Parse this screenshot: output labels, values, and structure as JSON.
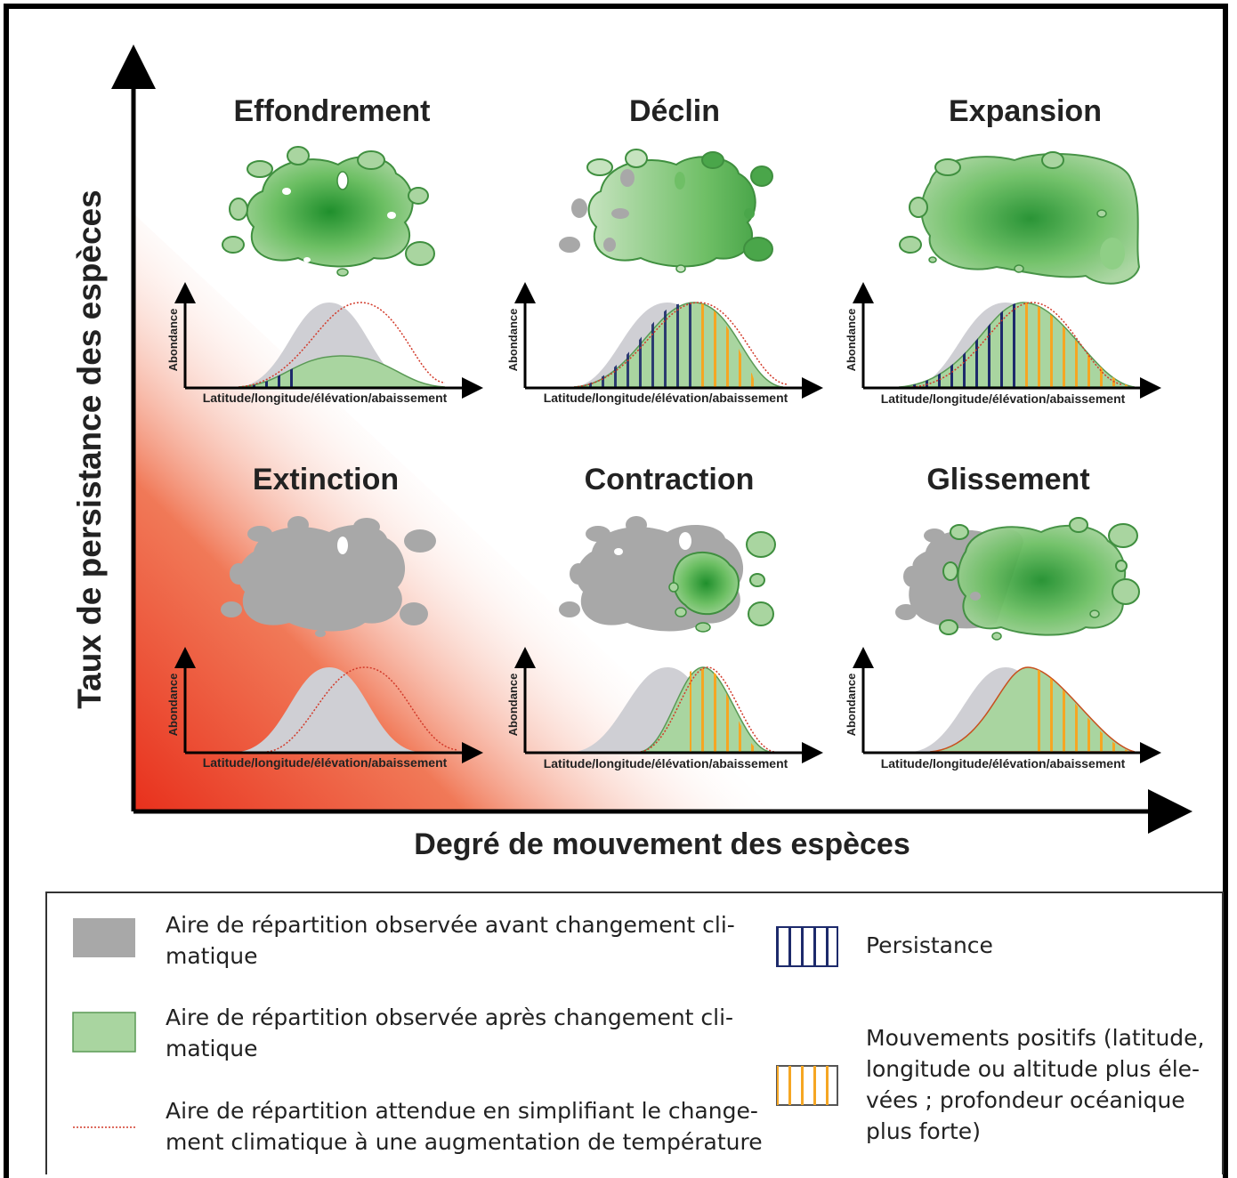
{
  "axes": {
    "y_label": "Taux de persistance des espèces",
    "x_label": "Degré de mouvement des espèces"
  },
  "panels": [
    {
      "title": "Effondrement",
      "ylabel": "Abondance",
      "xlabel": "Latitude/longitude/élévation/abaissement"
    },
    {
      "title": "Déclin",
      "ylabel": "Abondance",
      "xlabel": "Latitude/longitude/élévation/abaissement"
    },
    {
      "title": "Expansion",
      "ylabel": "Abondance",
      "xlabel": "Latitude/longitude/élévation/abaissement"
    },
    {
      "title": "Extinction",
      "ylabel": "Abondance",
      "xlabel": "Latitude/longitude/élévation/abaissement"
    },
    {
      "title": "Contraction",
      "ylabel": "Abondance",
      "xlabel": "Latitude/longitude/élévation/abaissement"
    },
    {
      "title": "Glissement",
      "ylabel": "Abondance",
      "xlabel": "Latitude/longitude/élévation/abaissement"
    }
  ],
  "legend": {
    "before": {
      "line1": "Aire de répartition observée avant changement cli-",
      "line2": "matique"
    },
    "after": {
      "line1": "Aire de répartition observée après changement cli-",
      "line2": "matique"
    },
    "expected": {
      "line1": "Aire de répartition attendue en simplifiant le change-",
      "line2": "ment climatique à une augmentation de température"
    },
    "persistence": {
      "line1": "Persistance"
    },
    "positive": {
      "line1": "Mouvements positifs (latitude,",
      "line2": "longitude ou altitude plus éle-",
      "line3": "vées ; profondeur océanique",
      "line4": "plus forte)"
    }
  },
  "colors": {
    "gray": "#a8a8a8",
    "green": "#a9d5a0",
    "dark_green": "#2e8b3a",
    "red": "#e8301c",
    "navy": "#1d2a6b",
    "orange": "#f5a623"
  }
}
